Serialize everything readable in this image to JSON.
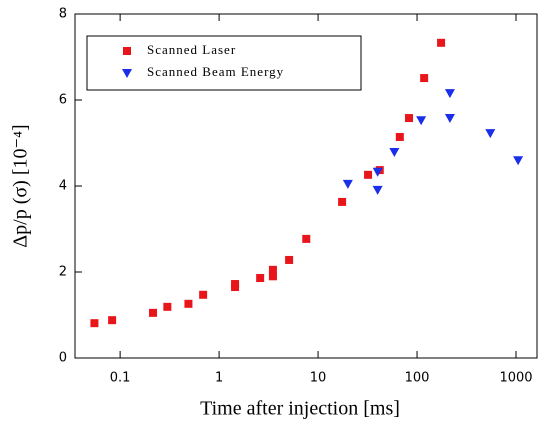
{
  "chart_data": {
    "type": "scatter",
    "x_label": "Time after injection [ms]",
    "y_label": "Δp/p (σ) [10⁻⁴]",
    "x_log": true,
    "xlim": [
      0.035,
      1630
    ],
    "xticks": [
      0.1,
      1,
      10,
      100,
      1000
    ],
    "ylim": [
      0,
      8
    ],
    "yticks": [
      0,
      2,
      4,
      6,
      8
    ],
    "legend": "upper left",
    "series": [
      {
        "name": "Scanned Laser",
        "color": "#e8161b",
        "marker": "square",
        "x": [
          0.055,
          0.083,
          0.215,
          0.3,
          0.49,
          0.69,
          1.45,
          1.45,
          2.6,
          3.5,
          3.5,
          5.1,
          7.6,
          17.5,
          32,
          42,
          67,
          83,
          118,
          175
        ],
        "values": [
          0.81,
          0.88,
          1.05,
          1.19,
          1.26,
          1.47,
          1.65,
          1.72,
          1.86,
          1.9,
          2.05,
          2.28,
          2.77,
          3.63,
          4.26,
          4.37,
          5.14,
          5.58,
          6.51,
          7.33
        ]
      },
      {
        "name": "Scanned Beam Energy",
        "color": "#1b2ee8",
        "marker": "triangle-down",
        "x": [
          20,
          40,
          40,
          59,
          110,
          215,
          215,
          550,
          1050
        ],
        "values": [
          4.05,
          4.33,
          3.91,
          4.79,
          5.53,
          6.16,
          5.58,
          5.23,
          4.6
        ]
      }
    ]
  }
}
